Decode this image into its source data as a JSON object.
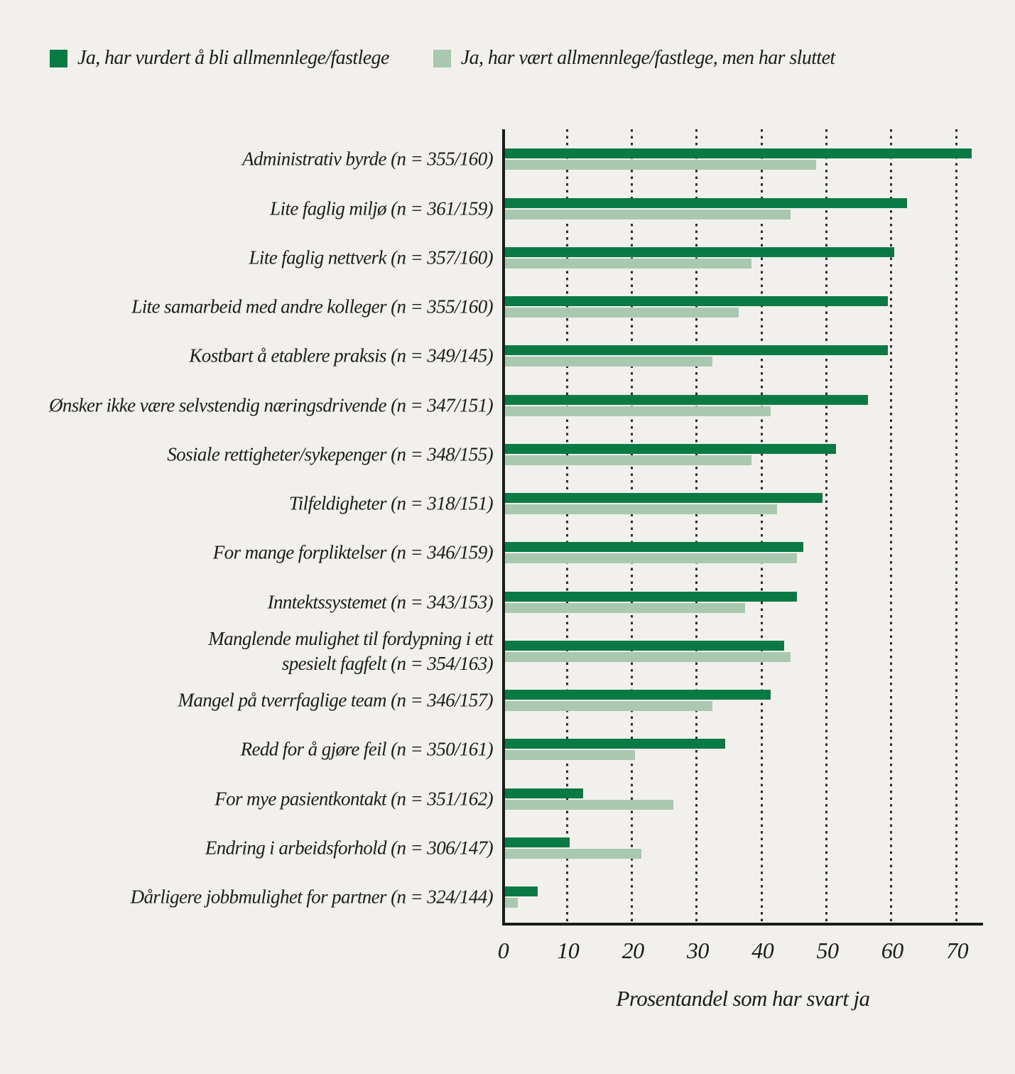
{
  "page": {
    "background": "#F2F0ED",
    "ink_color": "#1C1C1C",
    "gridline_color": "#2D2D2D"
  },
  "chart_data": {
    "type": "bar",
    "orientation": "horizontal",
    "xlabel": "Prosentandel som har svart ja",
    "xlim": [
      0,
      70
    ],
    "xticks": [
      "0",
      "10",
      "20",
      "30",
      "40",
      "50",
      "60",
      "70"
    ],
    "grid": "vertical-dotted",
    "legend_position": "top-left",
    "series": [
      {
        "key": "considered",
        "name": "Ja, har vurdert å bli allmennlege/fastlege",
        "color": "#0A7A45"
      },
      {
        "key": "quit",
        "name": "Ja, har vært allmennlege/fastlege, men har sluttet",
        "color": "#A9C8B0"
      }
    ],
    "rows": [
      {
        "label": "Administrativ byrde (n = 355/160)",
        "considered": 72,
        "quit": 48
      },
      {
        "label": "Lite faglig miljø (n = 361/159)",
        "considered": 62,
        "quit": 44
      },
      {
        "label": "Lite faglig nettverk (n = 357/160)",
        "considered": 60,
        "quit": 38
      },
      {
        "label": "Lite samarbeid med andre kolleger (n = 355/160)",
        "considered": 59,
        "quit": 36
      },
      {
        "label": "Kostbart å etablere praksis (n = 349/145)",
        "considered": 59,
        "quit": 32
      },
      {
        "label": "Ønsker ikke være selvstendig næringsdrivende (n = 347/151)",
        "considered": 56,
        "quit": 41
      },
      {
        "label": "Sosiale rettigheter/sykepenger (n = 348/155)",
        "considered": 51,
        "quit": 38
      },
      {
        "label": "Tilfeldigheter (n = 318/151)",
        "considered": 49,
        "quit": 42
      },
      {
        "label": "For mange forpliktelser (n = 346/159)",
        "considered": 46,
        "quit": 45
      },
      {
        "label": "Inntektssystemet (n = 343/153)",
        "considered": 45,
        "quit": 37
      },
      {
        "label": "Manglende mulighet til fordypning i ett\nspesielt fagfelt  (n = 354/163)",
        "considered": 43,
        "quit": 44
      },
      {
        "label": "Mangel på tverrfaglige team (n = 346/157)",
        "considered": 41,
        "quit": 32
      },
      {
        "label": "Redd for å gjøre feil (n = 350/161)",
        "considered": 34,
        "quit": 20
      },
      {
        "label": "For mye pasientkontakt (n = 351/162)",
        "considered": 12,
        "quit": 26
      },
      {
        "label": "Endring i arbeidsforhold (n = 306/147)",
        "considered": 10,
        "quit": 21
      },
      {
        "label": "Dårligere jobbmulighet for partner (n = 324/144)",
        "considered": 5,
        "quit": 2
      }
    ]
  }
}
